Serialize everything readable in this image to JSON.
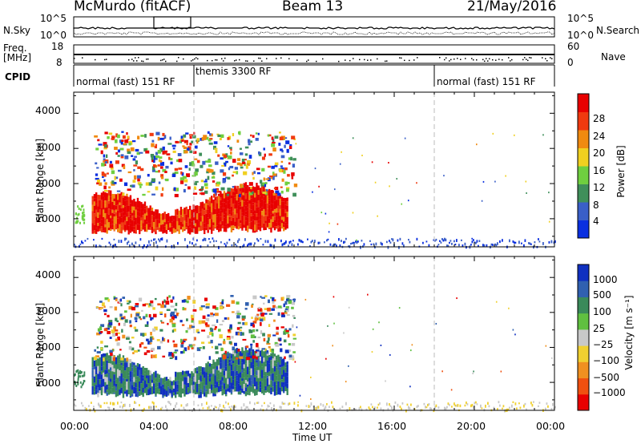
{
  "header": {
    "station": "McMurdo (fitACF)",
    "beam": "Beam 13",
    "date": "21/May/2016"
  },
  "side_labels": {
    "nsky": "N.Sky",
    "freq": "Freq.",
    "freq_unit": "[MHz]",
    "cpid": "CPID",
    "nsearch": "N.Search",
    "nave": "Nave"
  },
  "noise_panel": {
    "left_ticks": [
      "10^5",
      "10^0"
    ],
    "right_ticks": [
      "10^5",
      "10^0"
    ]
  },
  "freq_panel": {
    "left_ticks": [
      "18",
      "8"
    ],
    "right_ticks": [
      "60",
      "0"
    ]
  },
  "cpid_modes": [
    {
      "label": "normal (fast) 151 RF",
      "start_hour": 0,
      "end_hour": 6
    },
    {
      "label": "themis 3300 RF",
      "start_hour": 6,
      "end_hour": 18
    },
    {
      "label": "normal (fast) 151 RF",
      "start_hour": 18,
      "end_hour": 24
    }
  ],
  "axes": {
    "ylabel": "Slant Range [km]",
    "xlabel": "Time UT",
    "y_ticks": [
      "1000",
      "2000",
      "3000",
      "4000"
    ],
    "x_ticks": [
      "00:00",
      "04:00",
      "08:00",
      "12:00",
      "16:00",
      "20:00",
      "00:00"
    ]
  },
  "chart_data": [
    {
      "type": "heatmap",
      "title": "",
      "xlabel": "",
      "ylabel": "Slant Range [km]",
      "xlim": [
        0,
        24
      ],
      "ylim": [
        200,
        4600
      ],
      "colorbar": {
        "label": "Power [dB]",
        "ticks": [
          "4",
          "8",
          "12",
          "16",
          "20",
          "24",
          "28"
        ],
        "colors": [
          "#0a2fe0",
          "#3a5fc8",
          "#3f8f5a",
          "#6fcf3f",
          "#f0d020",
          "#f08a10",
          "#f03a10",
          "#e80000"
        ]
      },
      "regions": [
        {
          "time_hours": [
            0.9,
            10.6
          ],
          "range_km": [
            600,
            1700
          ],
          "value": "high power (24-30 dB)"
        },
        {
          "time_hours": [
            1.0,
            11.0
          ],
          "range_km": [
            1700,
            3600
          ],
          "value": "mixed 8-20 dB"
        },
        {
          "time_hours": [
            10.6,
            24.0
          ],
          "range_km": [
            200,
            450
          ],
          "value": "near-range ground scatter"
        }
      ]
    },
    {
      "type": "heatmap",
      "title": "",
      "xlabel": "Time UT",
      "ylabel": "Slant Range [km]",
      "xlim": [
        0,
        24
      ],
      "ylim": [
        200,
        4600
      ],
      "colorbar": {
        "label": "Velocity [m s⁻¹]",
        "ticks": [
          "1000",
          "500",
          "100",
          "25",
          "−25",
          "−100",
          "−500",
          "−1000"
        ],
        "colors": [
          "#1030c0",
          "#3060b0",
          "#3a8a5a",
          "#60c040",
          "#c8c8c8",
          "#f0d030",
          "#f09020",
          "#f05010",
          "#e80000"
        ]
      },
      "regions": [
        {
          "time_hours": [
            0.9,
            10.6
          ],
          "range_km": [
            600,
            1700
          ],
          "value": "positive 100-1000 m/s (green/blue)"
        },
        {
          "time_hours": [
            1.0,
            11.0
          ],
          "range_km": [
            1700,
            3600
          ],
          "value": "mixed, near zero"
        },
        {
          "time_hours": [
            10.6,
            24.0
          ],
          "range_km": [
            200,
            450
          ],
          "value": "ground scatter ~0 m/s"
        }
      ]
    }
  ]
}
